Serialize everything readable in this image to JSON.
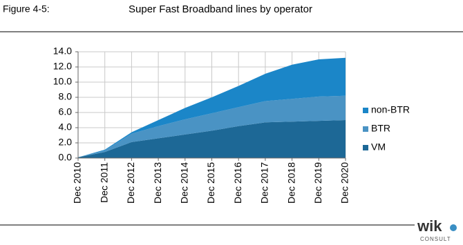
{
  "header": {
    "figure": "Figure 4-5:",
    "caption": "Super Fast Broadband lines by operator"
  },
  "chart_data": {
    "type": "stacked-area",
    "categories": [
      "Dec 2010",
      "Dec 2011",
      "Dec 2012",
      "Dec 2013",
      "Dec 2014",
      "Dec 2015",
      "Dec 2016",
      "Dec 2017",
      "Dec 2018",
      "Dec 2019",
      "Dec 2020"
    ],
    "series": [
      {
        "name": "VM",
        "color": "#1d6896",
        "values": [
          0.1,
          0.8,
          2.1,
          2.6,
          3.1,
          3.6,
          4.2,
          4.7,
          4.8,
          4.9,
          5.0
        ]
      },
      {
        "name": "BTR",
        "color": "#4a93c4",
        "values": [
          0.0,
          0.2,
          1.1,
          1.6,
          2.0,
          2.3,
          2.5,
          2.8,
          3.0,
          3.2,
          3.2
        ]
      },
      {
        "name": "non-BTR",
        "color": "#1b86c8",
        "values": [
          0.0,
          0.1,
          0.2,
          0.8,
          1.5,
          2.1,
          2.8,
          3.6,
          4.5,
          4.9,
          5.0
        ]
      }
    ],
    "ylim": [
      0,
      14
    ],
    "yticks": [
      {
        "value": 0,
        "label": "0.0"
      },
      {
        "value": 2,
        "label": "2.0"
      },
      {
        "value": 4,
        "label": "4.0"
      },
      {
        "value": 6,
        "label": "6.0"
      },
      {
        "value": 8,
        "label": "8.0"
      },
      {
        "value": 10,
        "label": "10.0"
      },
      {
        "value": 12,
        "label": "12.0"
      },
      {
        "value": 14,
        "label": "14.0"
      }
    ],
    "grid": true,
    "legend": "right"
  },
  "logo": {
    "name": "wik",
    "sub": "CONSULT"
  }
}
